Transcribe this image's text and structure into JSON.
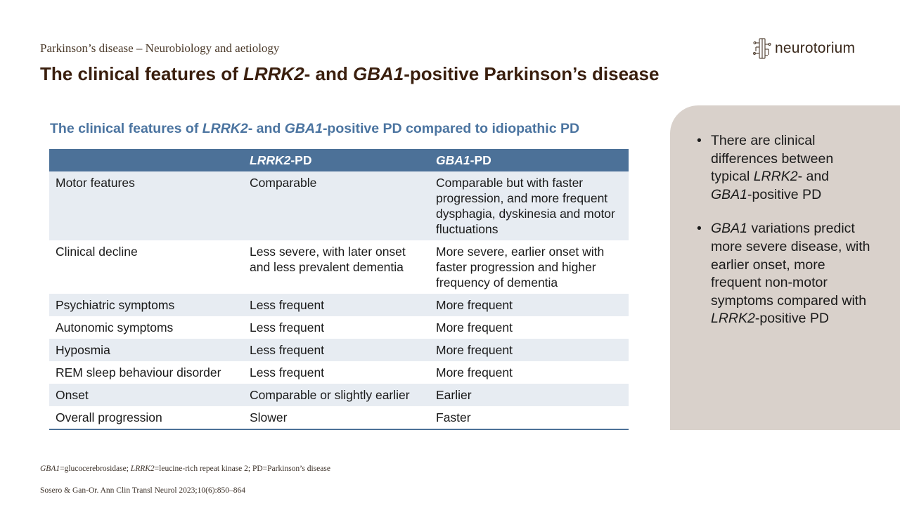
{
  "header": {
    "kicker": "Parkinson’s disease – Neurobiology and aetiology",
    "title": {
      "p1": "The clinical features of ",
      "g1": "LRRK2",
      "p2": "- and ",
      "g2": "GBA1",
      "p3": "-positive Parkinson’s disease"
    },
    "logo_text": "neurotorium",
    "logo_icon": "brain-circuit-icon"
  },
  "table": {
    "title": {
      "p1": "The clinical features of ",
      "g1": "LRRK2",
      "p2": "- and ",
      "g2": "GBA1",
      "p3": "-positive PD compared to idiopathic PD"
    },
    "header": {
      "c1": "",
      "c2_gene": "LRRK2",
      "c2_rest": "-PD",
      "c3_gene": "GBA1",
      "c3_rest": "-PD"
    },
    "rows": [
      {
        "feature": "Motor features",
        "lrrk2": "Comparable",
        "gba1": "Comparable but with faster progression, and more frequent dysphagia, dyskinesia and motor fluctuations"
      },
      {
        "feature": "Clinical decline",
        "lrrk2": "Less severe, with later onset and less prevalent dementia",
        "gba1": "More severe, earlier onset with faster progression and higher frequency of dementia"
      },
      {
        "feature": "Psychiatric symptoms",
        "lrrk2": "Less frequent",
        "gba1": "More frequent"
      },
      {
        "feature": "Autonomic symptoms",
        "lrrk2": "Less frequent",
        "gba1": "More frequent"
      },
      {
        "feature": "Hyposmia",
        "lrrk2": "Less frequent",
        "gba1": "More frequent"
      },
      {
        "feature": "REM sleep behaviour disorder",
        "lrrk2": "Less frequent",
        "gba1": "More frequent"
      },
      {
        "feature": "Onset",
        "lrrk2": "Comparable or slightly earlier",
        "gba1": "Earlier"
      },
      {
        "feature": "Overall progression",
        "lrrk2": "Slower",
        "gba1": "Faster"
      }
    ]
  },
  "panel": {
    "bullet": "•",
    "b1": {
      "p1": "There are clinical differences between typical ",
      "g1": "LRRK2",
      "p2": "- and ",
      "g2": "GBA1",
      "p3": "-positive PD"
    },
    "b2": {
      "g1": "GBA1",
      "p1": " variations predict more severe disease, with earlier onset, more frequent non-motor symptoms compared with ",
      "g2": "LRRK2",
      "p2": "-positive PD"
    }
  },
  "footnote": {
    "g1": "GBA1",
    "p1": "=glucocerebrosidase; ",
    "g2": "LRRK2",
    "p2": "=leucine-rich repeat kinase 2; PD=Parkinson’s disease"
  },
  "reference": "Sosero & Gan-Or. Ann Clin Transl Neurol 2023;10(6):850–864",
  "colors": {
    "title": "#3a1f0e",
    "table_header": "#4c7198",
    "table_title": "#4b74a0",
    "row_alt": "#e7ecf2",
    "panel": "#d9d1cb"
  }
}
